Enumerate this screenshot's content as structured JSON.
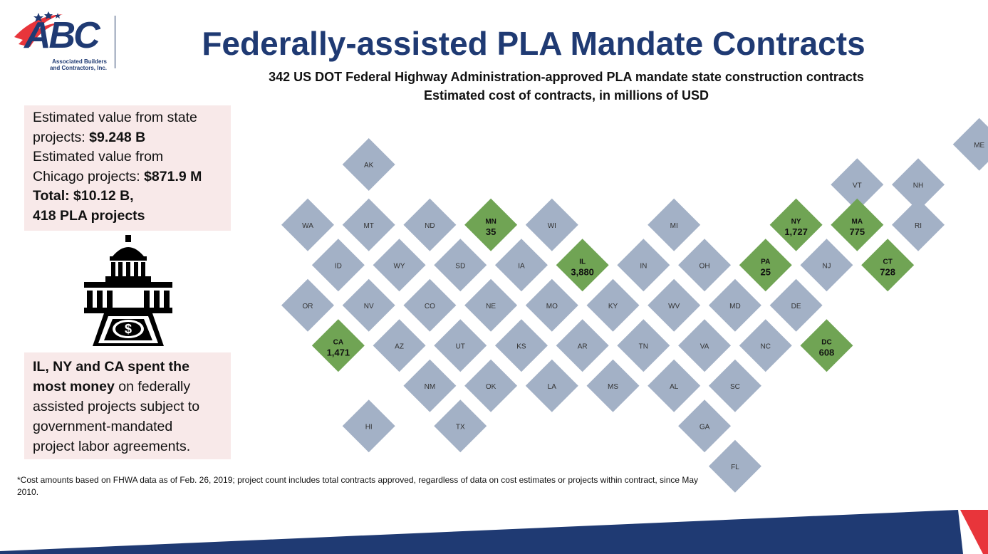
{
  "logo": {
    "wordmark": "ABC",
    "subtitle_line1": "Associated Builders",
    "subtitle_line2": "and Contractors, Inc."
  },
  "title": "Federally-assisted PLA Mandate Contracts",
  "subtitle_line1": "342 US DOT Federal Highway Administration-approved PLA mandate state construction contracts",
  "subtitle_line2": "Estimated cost of contracts, in millions of USD",
  "summary": {
    "line1": "Estimated value from state",
    "line2_prefix": "projects: ",
    "line2_value": "$9.248 B",
    "line3": "Estimated value from",
    "line4_prefix": "Chicago projects: ",
    "line4_value": "$871.9 M",
    "line5": "Total: $10.12 B,",
    "line6": "418 PLA projects"
  },
  "callout": {
    "bold1": "IL, NY and CA spent the",
    "bold2": "most money",
    "rest2": " on federally",
    "line3": "assisted projects subject to",
    "line4": "government-mandated",
    "line5": "project labor agreements."
  },
  "footnote": "*Cost amounts based on FHWA data as of Feb. 26, 2019; project count includes total contracts approved, regardless of data on cost estimates or projects within contract, since May 2010.",
  "colors": {
    "navy": "#1f3a73",
    "tile_default": "#a3b1c6",
    "tile_highlight": "#70a454",
    "accent_red": "#e8353b",
    "panel_bg": "#f8e9e9"
  },
  "icon": "capitol-building-with-dollar-icon",
  "map": {
    "tiles": [
      {
        "abbr": "AK",
        "col": 1,
        "row": 0
      },
      {
        "abbr": "ME",
        "col": 11,
        "row": -0.5
      },
      {
        "abbr": "VT",
        "col": 9,
        "row": 0.5
      },
      {
        "abbr": "NH",
        "col": 10,
        "row": 0.5
      },
      {
        "abbr": "WA",
        "col": 0,
        "row": 1.5
      },
      {
        "abbr": "MT",
        "col": 1,
        "row": 1.5
      },
      {
        "abbr": "ND",
        "col": 2,
        "row": 1.5
      },
      {
        "abbr": "MN",
        "col": 3,
        "row": 1.5,
        "value": "35"
      },
      {
        "abbr": "WI",
        "col": 4,
        "row": 1.5
      },
      {
        "abbr": "MI",
        "col": 6,
        "row": 1.5
      },
      {
        "abbr": "NY",
        "col": 8,
        "row": 1.5,
        "value": "1,727"
      },
      {
        "abbr": "MA",
        "col": 9,
        "row": 1.5,
        "value": "775"
      },
      {
        "abbr": "RI",
        "col": 10,
        "row": 1.5
      },
      {
        "abbr": "ID",
        "col": 0.5,
        "row": 2.5
      },
      {
        "abbr": "WY",
        "col": 1.5,
        "row": 2.5
      },
      {
        "abbr": "SD",
        "col": 2.5,
        "row": 2.5
      },
      {
        "abbr": "IA",
        "col": 3.5,
        "row": 2.5
      },
      {
        "abbr": "IL",
        "col": 4.5,
        "row": 2.5,
        "value": "3,880"
      },
      {
        "abbr": "IN",
        "col": 5.5,
        "row": 2.5
      },
      {
        "abbr": "OH",
        "col": 6.5,
        "row": 2.5
      },
      {
        "abbr": "PA",
        "col": 7.5,
        "row": 2.5,
        "value": "25"
      },
      {
        "abbr": "NJ",
        "col": 8.5,
        "row": 2.5
      },
      {
        "abbr": "CT",
        "col": 9.5,
        "row": 2.5,
        "value": "728"
      },
      {
        "abbr": "OR",
        "col": 0,
        "row": 3.5
      },
      {
        "abbr": "NV",
        "col": 1,
        "row": 3.5
      },
      {
        "abbr": "CO",
        "col": 2,
        "row": 3.5
      },
      {
        "abbr": "NE",
        "col": 3,
        "row": 3.5
      },
      {
        "abbr": "MO",
        "col": 4,
        "row": 3.5
      },
      {
        "abbr": "KY",
        "col": 5,
        "row": 3.5
      },
      {
        "abbr": "WV",
        "col": 6,
        "row": 3.5
      },
      {
        "abbr": "MD",
        "col": 7,
        "row": 3.5
      },
      {
        "abbr": "DE",
        "col": 8,
        "row": 3.5
      },
      {
        "abbr": "CA",
        "col": 0.5,
        "row": 4.5,
        "value": "1,471"
      },
      {
        "abbr": "AZ",
        "col": 1.5,
        "row": 4.5
      },
      {
        "abbr": "UT",
        "col": 2.5,
        "row": 4.5
      },
      {
        "abbr": "KS",
        "col": 3.5,
        "row": 4.5
      },
      {
        "abbr": "AR",
        "col": 4.5,
        "row": 4.5
      },
      {
        "abbr": "TN",
        "col": 5.5,
        "row": 4.5
      },
      {
        "abbr": "VA",
        "col": 6.5,
        "row": 4.5
      },
      {
        "abbr": "NC",
        "col": 7.5,
        "row": 4.5
      },
      {
        "abbr": "DC",
        "col": 8.5,
        "row": 4.5,
        "value": "608"
      },
      {
        "abbr": "NM",
        "col": 2,
        "row": 5.5
      },
      {
        "abbr": "OK",
        "col": 3,
        "row": 5.5
      },
      {
        "abbr": "LA",
        "col": 4,
        "row": 5.5
      },
      {
        "abbr": "MS",
        "col": 5,
        "row": 5.5
      },
      {
        "abbr": "AL",
        "col": 6,
        "row": 5.5
      },
      {
        "abbr": "SC",
        "col": 7,
        "row": 5.5
      },
      {
        "abbr": "HI",
        "col": 1,
        "row": 6.5
      },
      {
        "abbr": "TX",
        "col": 2.5,
        "row": 6.5
      },
      {
        "abbr": "GA",
        "col": 6.5,
        "row": 6.5
      },
      {
        "abbr": "FL",
        "col": 7,
        "row": 7.5
      }
    ]
  }
}
